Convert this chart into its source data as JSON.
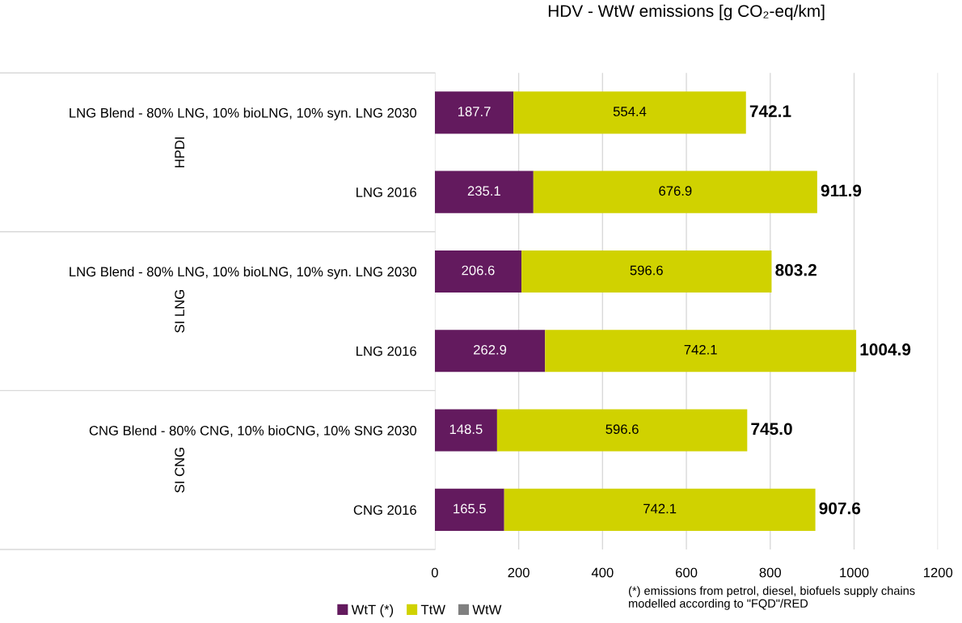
{
  "chart_data": {
    "type": "bar",
    "orientation": "horizontal",
    "stacked": true,
    "title": "HDV - WtW emissions [g CO₂-eq/km]",
    "categories": [
      "LNG Blend - 80% LNG, 10% bioLNG, 10% syn. LNG 2030",
      "LNG 2016",
      "LNG Blend - 80% LNG, 10% bioLNG, 10% syn. LNG 2030",
      "LNG 2016",
      "CNG Blend - 80% CNG, 10% bioCNG, 10% SNG 2030",
      "CNG 2016"
    ],
    "series": [
      {
        "name": "WtT (*)",
        "color": "#631a5e",
        "values": [
          187.7,
          235.1,
          206.6,
          262.9,
          148.5,
          165.5
        ],
        "value_labels": [
          "187.7",
          "235.1",
          "206.6",
          "262.9",
          "148.5",
          "165.5"
        ]
      },
      {
        "name": "TtW",
        "color": "#d0d200",
        "values": [
          554.4,
          676.9,
          596.6,
          742.1,
          596.6,
          742.1
        ],
        "value_labels": [
          "554.4",
          "676.9",
          "596.6",
          "742.1",
          "596.6",
          "742.1"
        ]
      },
      {
        "name": "WtW",
        "color": "#808080",
        "values": [
          null,
          null,
          null,
          null,
          null,
          null
        ]
      }
    ],
    "totals": [
      "742.1",
      "911.9",
      "803.2",
      "1004.9",
      "745.0",
      "907.6"
    ],
    "xlim": [
      0,
      1200
    ],
    "xticks": [
      0,
      200,
      400,
      600,
      800,
      1000,
      1200
    ],
    "grid": "x",
    "legend": "bottom",
    "annotations": [
      "HPDI",
      "SI LNG",
      "SI CNG",
      "(*) emissions from petrol, diesel, biofuels supply chains modelled according to \"FQD\"/RED"
    ]
  }
}
